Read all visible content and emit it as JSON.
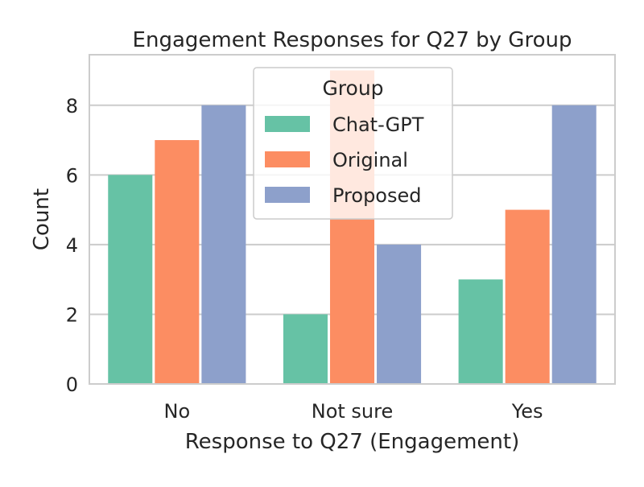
{
  "chart_data": {
    "type": "bar",
    "title": "Engagement Responses for Q27 by Group",
    "xlabel": "Response to Q27 (Engagement)",
    "ylabel": "Count",
    "categories": [
      "No",
      "Not sure",
      "Yes"
    ],
    "ylim": [
      0,
      9.45
    ],
    "yticks": [
      0,
      2,
      4,
      6,
      8
    ],
    "grid": true,
    "legend": {
      "title": "Group",
      "placement": "upper center"
    },
    "series": [
      {
        "name": "Chat-GPT",
        "values": [
          6,
          2,
          3
        ],
        "color": "#66c2a5"
      },
      {
        "name": "Original",
        "values": [
          7,
          9,
          5
        ],
        "color": "#fc8d62"
      },
      {
        "name": "Proposed",
        "values": [
          8,
          4,
          8
        ],
        "color": "#8da0cb"
      }
    ]
  }
}
